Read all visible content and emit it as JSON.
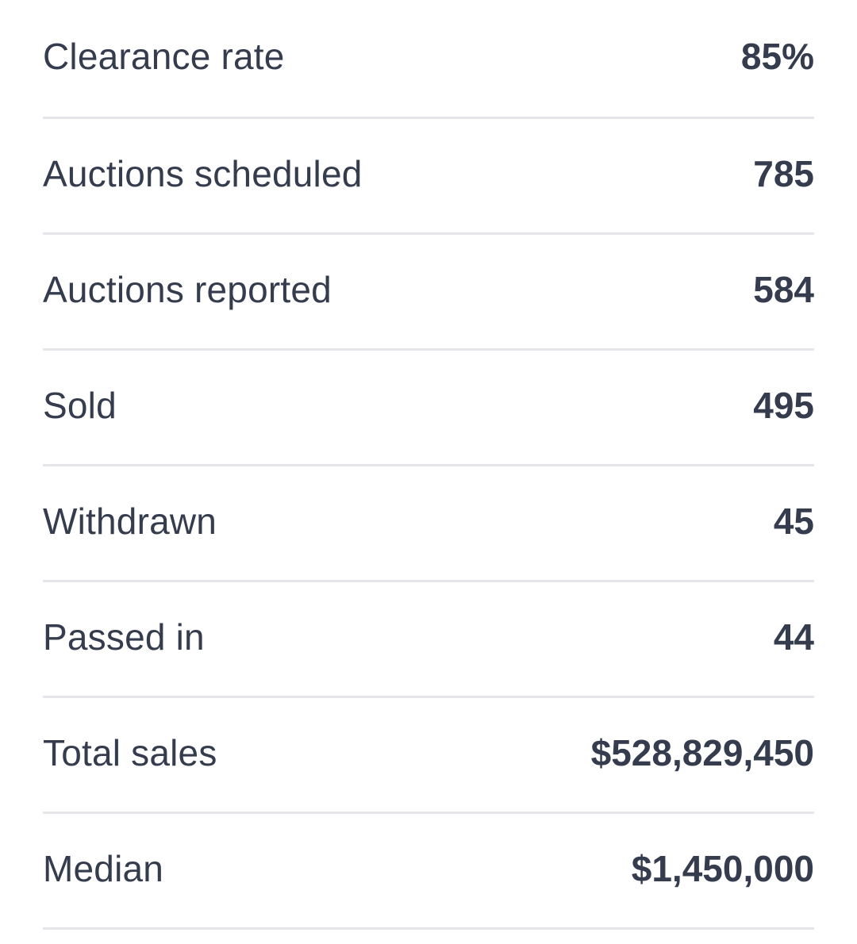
{
  "stats": [
    {
      "label": "Clearance rate",
      "value": "85%"
    },
    {
      "label": "Auctions scheduled",
      "value": "785"
    },
    {
      "label": "Auctions reported",
      "value": "584"
    },
    {
      "label": "Sold",
      "value": "495"
    },
    {
      "label": "Withdrawn",
      "value": "45"
    },
    {
      "label": "Passed in",
      "value": "44"
    },
    {
      "label": "Total sales",
      "value": "$528,829,450"
    },
    {
      "label": "Median",
      "value": "$1,450,000"
    }
  ]
}
